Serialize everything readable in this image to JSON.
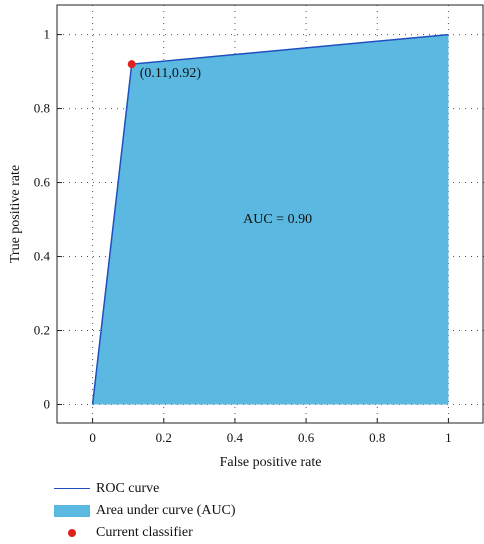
{
  "chart_data": {
    "type": "area",
    "xlabel": "False positive rate",
    "ylabel": "True positive rate",
    "xlim": [
      -0.1,
      1.1
    ],
    "ylim": [
      -0.05,
      1.08
    ],
    "x_ticks": [
      0,
      0.2,
      0.4,
      0.6,
      0.8,
      1
    ],
    "y_ticks": [
      0,
      0.2,
      0.4,
      0.6,
      0.8,
      1
    ],
    "x_tick_labels": [
      "0",
      "0.2",
      "0.4",
      "0.6",
      "0.8",
      "1"
    ],
    "y_tick_labels": [
      "0",
      "0.2",
      "0.4",
      "0.6",
      "0.8",
      "1"
    ],
    "grid": "dotted",
    "series": [
      {
        "name": "ROC curve",
        "x": [
          0,
          0.11,
          1
        ],
        "y": [
          0,
          0.92,
          1
        ]
      }
    ],
    "area_under_curve": {
      "name": "Area under curve (AUC)"
    },
    "point": {
      "name": "Current classifier",
      "x": 0.11,
      "y": 0.92,
      "label": "(0.11,0.92)"
    },
    "annotation": "AUC = 0.90",
    "legend_position": "bottom-left",
    "colors": {
      "roc_line": "#1f4fbf",
      "auc_fill": "#5bb8e0",
      "point": "#e0201c"
    }
  }
}
